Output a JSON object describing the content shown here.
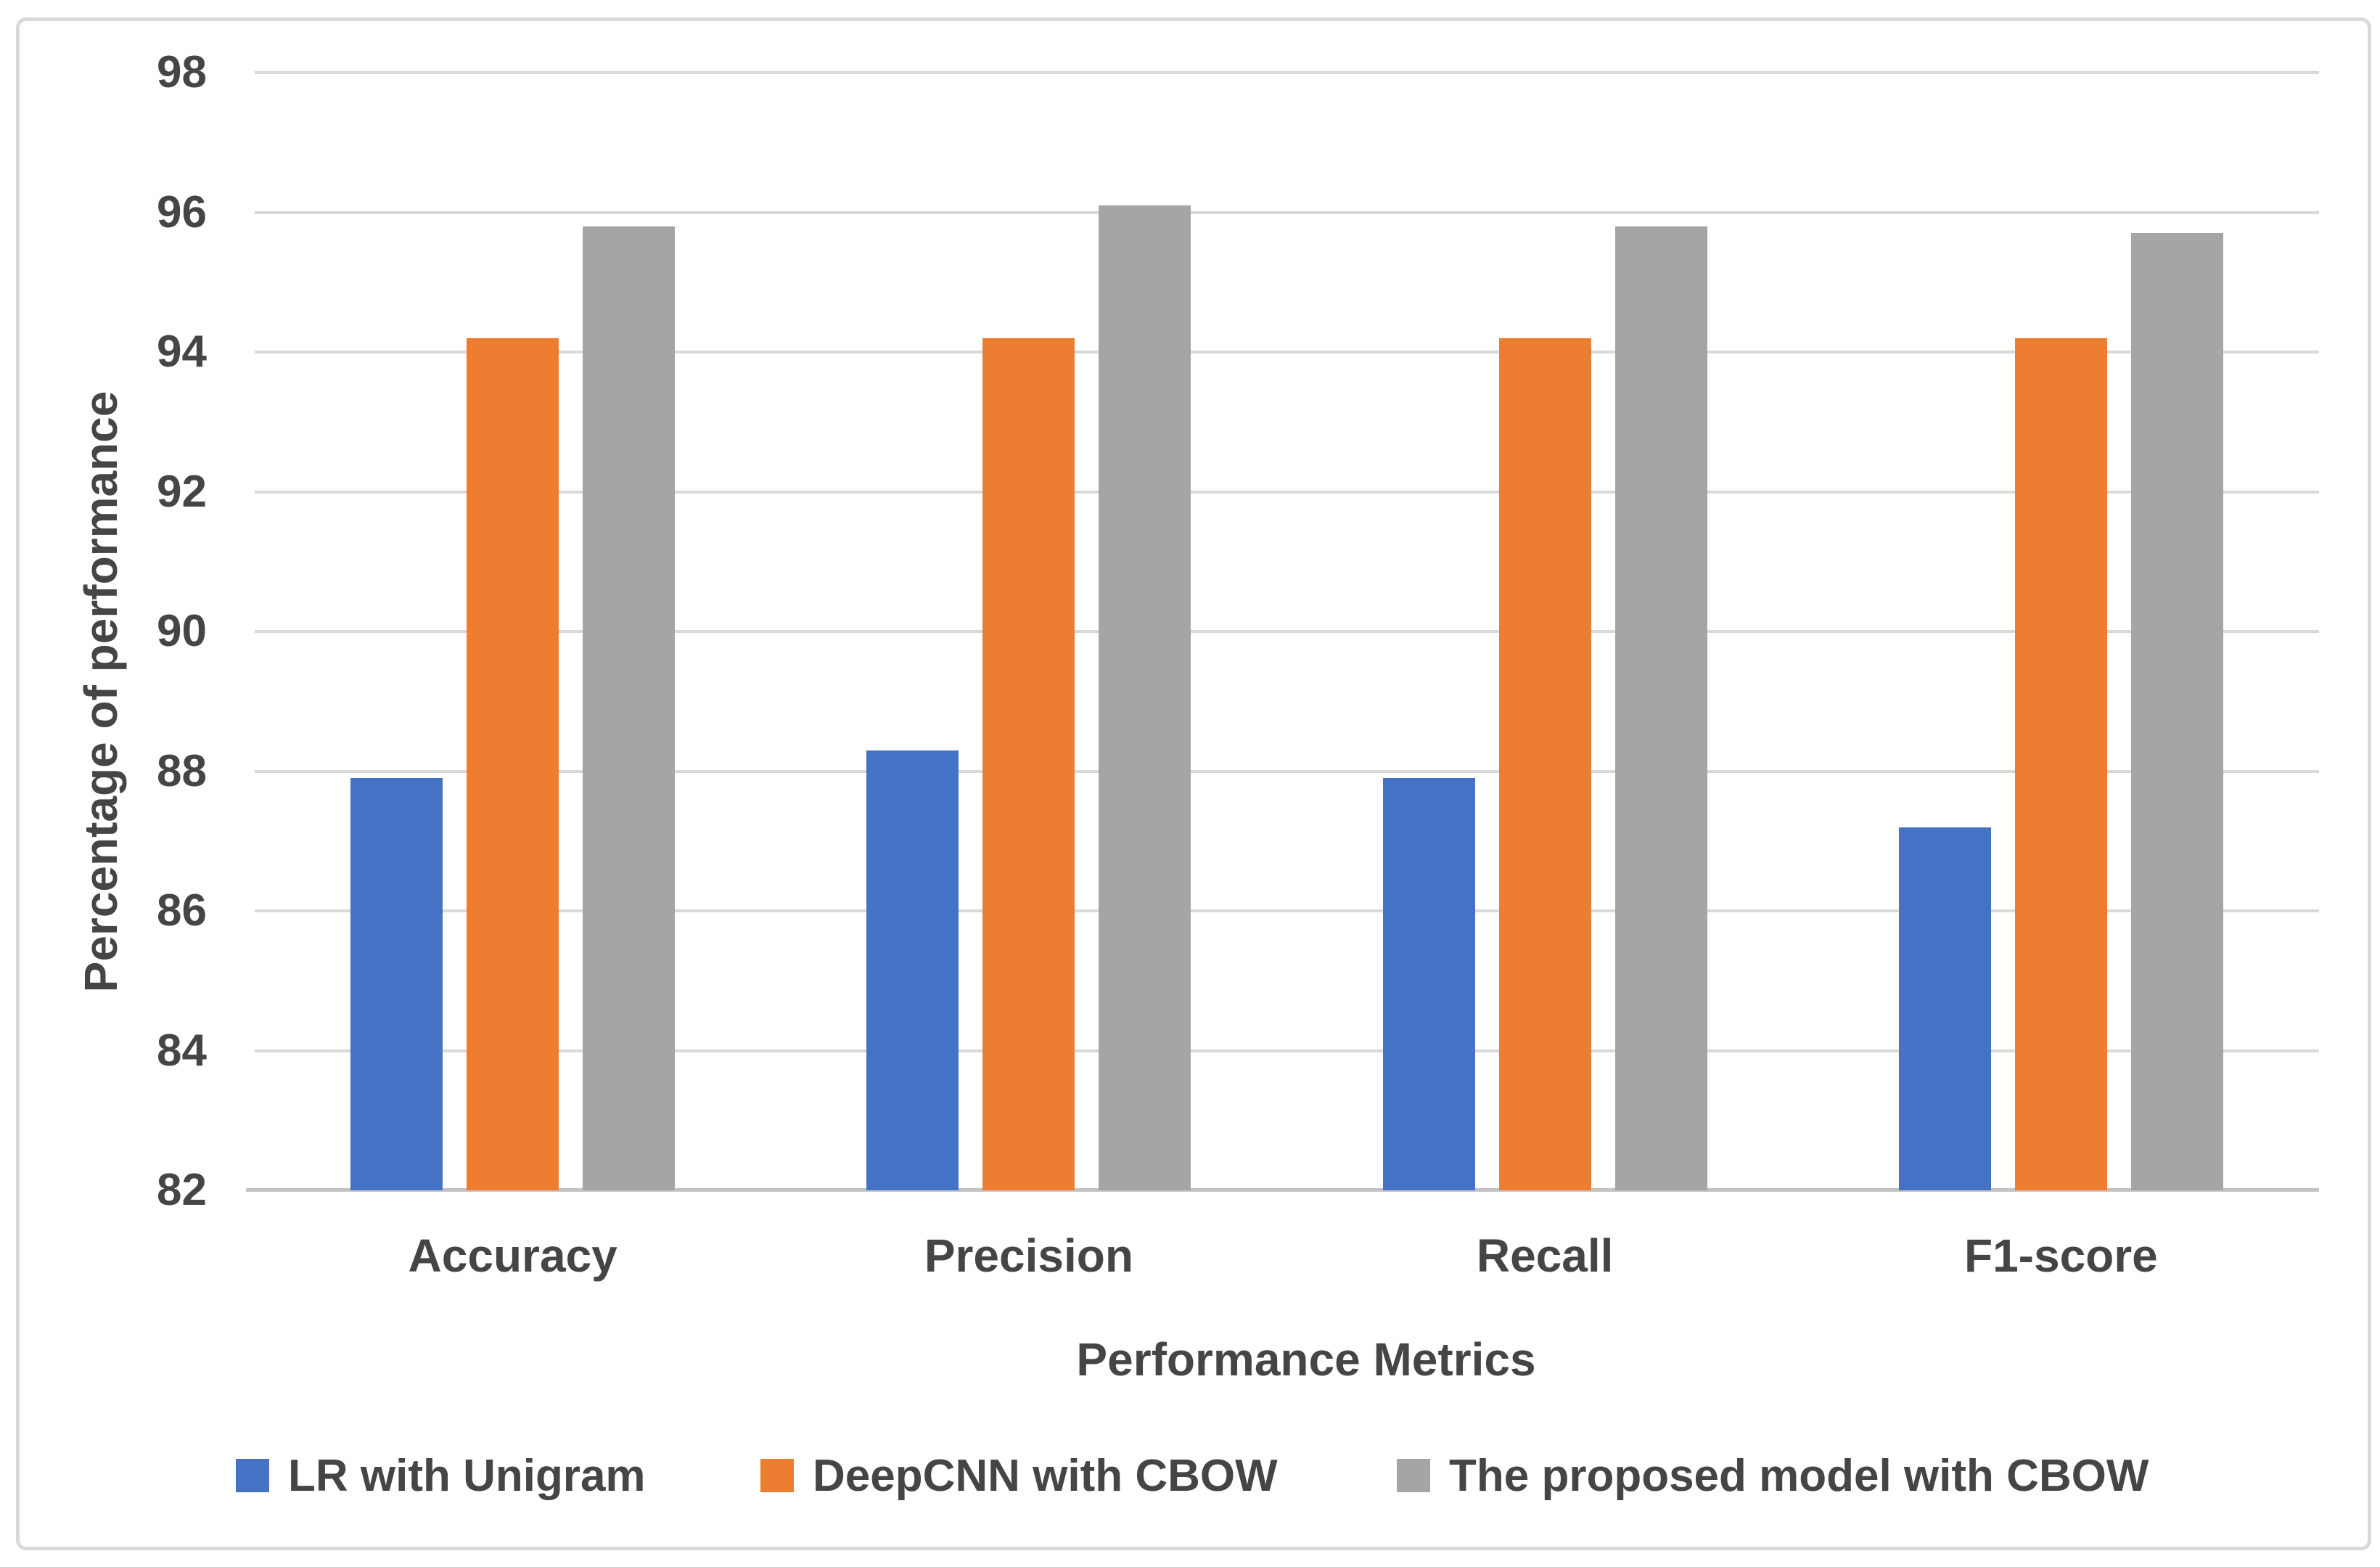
{
  "chart_data": {
    "type": "bar",
    "title": "",
    "categories": [
      "Accuracy",
      "Precision",
      "Recall",
      "F1-score"
    ],
    "series": [
      {
        "name": "LR with Unigram",
        "color": "#4472C4",
        "values": [
          87.9,
          88.3,
          87.9,
          87.2
        ]
      },
      {
        "name": "DeepCNN with CBOW",
        "color": "#ED7D31",
        "values": [
          94.2,
          94.2,
          94.2,
          94.2
        ]
      },
      {
        "name": "The proposed model with CBOW",
        "color": "#A5A5A5",
        "values": [
          95.8,
          96.1,
          95.8,
          95.7
        ]
      }
    ],
    "xlabel": "Performance Metrics",
    "ylabel": "Percentage of performance",
    "ylim": [
      82,
      98
    ],
    "ytick_step": 2,
    "yticks": [
      98,
      96,
      94,
      92,
      90,
      88,
      86,
      84,
      82
    ],
    "grid": "horizontal",
    "legend_position": "bottom",
    "colors": {
      "gridline": "#D9D9D9",
      "axis_line": "#C3C3C3",
      "chart_border": "#D9D9D9",
      "text": "#454545",
      "background": "#FFFFFF"
    }
  }
}
